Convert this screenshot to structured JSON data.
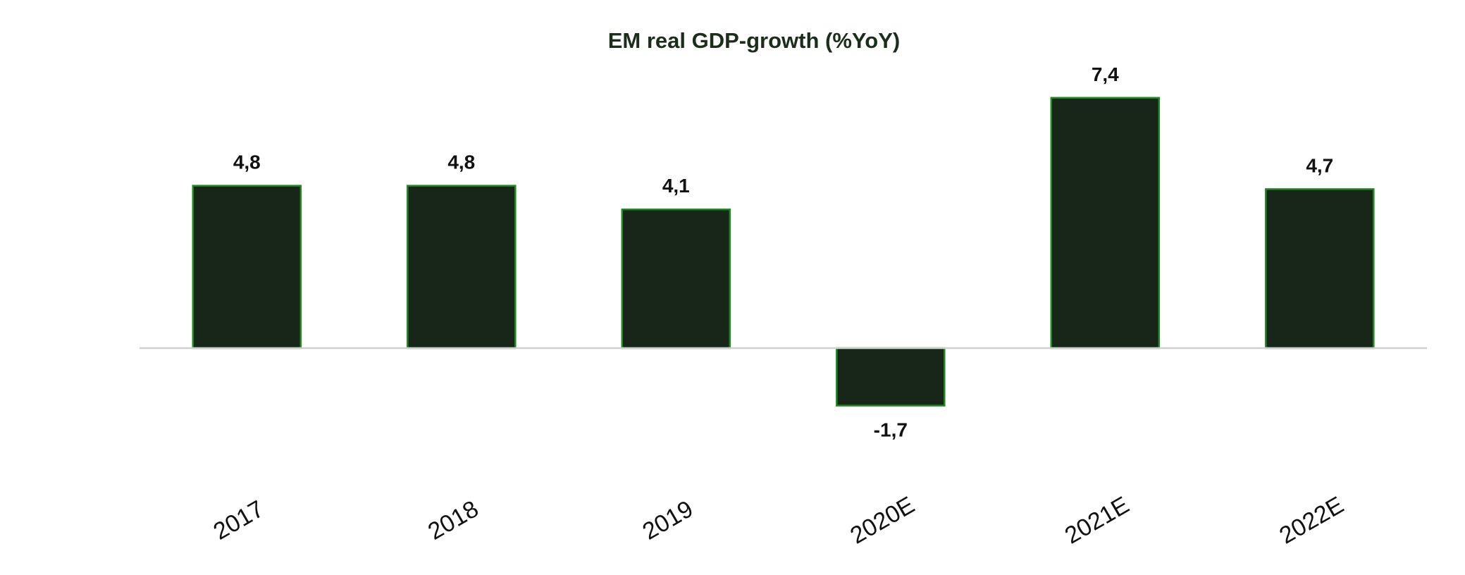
{
  "chart_data": {
    "type": "bar",
    "title": "EM real GDP-growth (%YoY)",
    "categories": [
      "2017",
      "2018",
      "2019",
      "2020E",
      "2021E",
      "2022E"
    ],
    "values": [
      4.8,
      4.8,
      4.1,
      -1.7,
      7.4,
      4.7
    ],
    "value_labels": [
      "4,8",
      "4,8",
      "4,1",
      "-1,7",
      "7,4",
      "4,7"
    ],
    "xlabel": "",
    "ylabel": "",
    "ylim": [
      -4.5,
      9
    ],
    "grid": false,
    "legend": "none",
    "colors": {
      "bar_fill": "#18261a",
      "bar_stroke": "#1f8a1f",
      "axis": "#cfcfcf",
      "title": "#1a2e1a"
    }
  }
}
